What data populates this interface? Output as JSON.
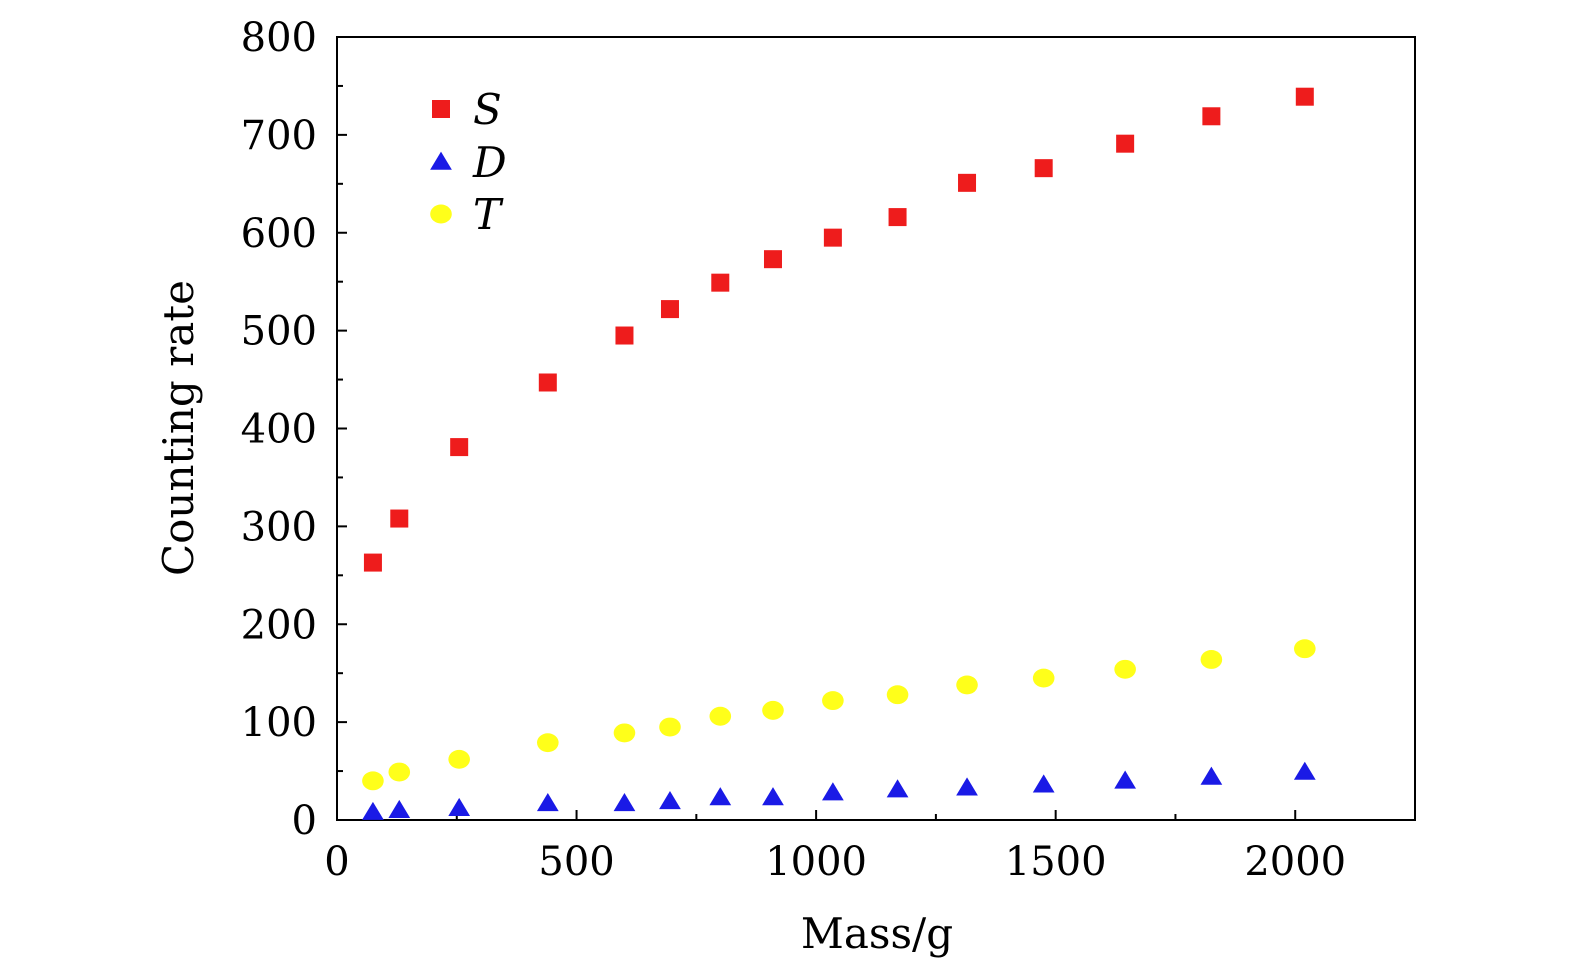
{
  "chart_data": {
    "type": "scatter",
    "xlabel": "Mass/g",
    "ylabel": "Counting rate",
    "xlim": [
      0,
      2250
    ],
    "ylim": [
      0,
      800
    ],
    "xticks": [
      0,
      500,
      1000,
      1500,
      2000
    ],
    "xtick_labels": [
      "0",
      "500",
      "1000",
      "1500",
      "2000"
    ],
    "yticks": [
      0,
      100,
      200,
      300,
      400,
      500,
      600,
      700,
      800
    ],
    "ytick_labels": [
      "0",
      "100",
      "200",
      "300",
      "400",
      "500",
      "600",
      "700",
      "800"
    ],
    "grid": false,
    "legend_position": "top-left",
    "x": [
      75,
      130,
      255,
      440,
      600,
      695,
      800,
      910,
      1035,
      1170,
      1315,
      1475,
      1645,
      1825,
      2020
    ],
    "series": [
      {
        "name": "S",
        "marker": "square",
        "color": "#ee1c1c",
        "values": [
          263,
          308,
          381,
          447,
          495,
          522,
          549,
          573,
          595,
          616,
          651,
          666,
          691,
          719,
          739
        ]
      },
      {
        "name": "D",
        "marker": "triangle",
        "color": "#1a1ae6",
        "values": [
          8,
          10,
          12,
          17,
          17,
          19,
          23,
          23,
          28,
          31,
          33,
          36,
          40,
          44,
          49
        ]
      },
      {
        "name": "T",
        "marker": "circle",
        "color": "#ffff1a",
        "values": [
          40,
          49,
          62,
          79,
          89,
          95,
          106,
          112,
          122,
          128,
          138,
          145,
          154,
          164,
          175
        ]
      }
    ]
  }
}
